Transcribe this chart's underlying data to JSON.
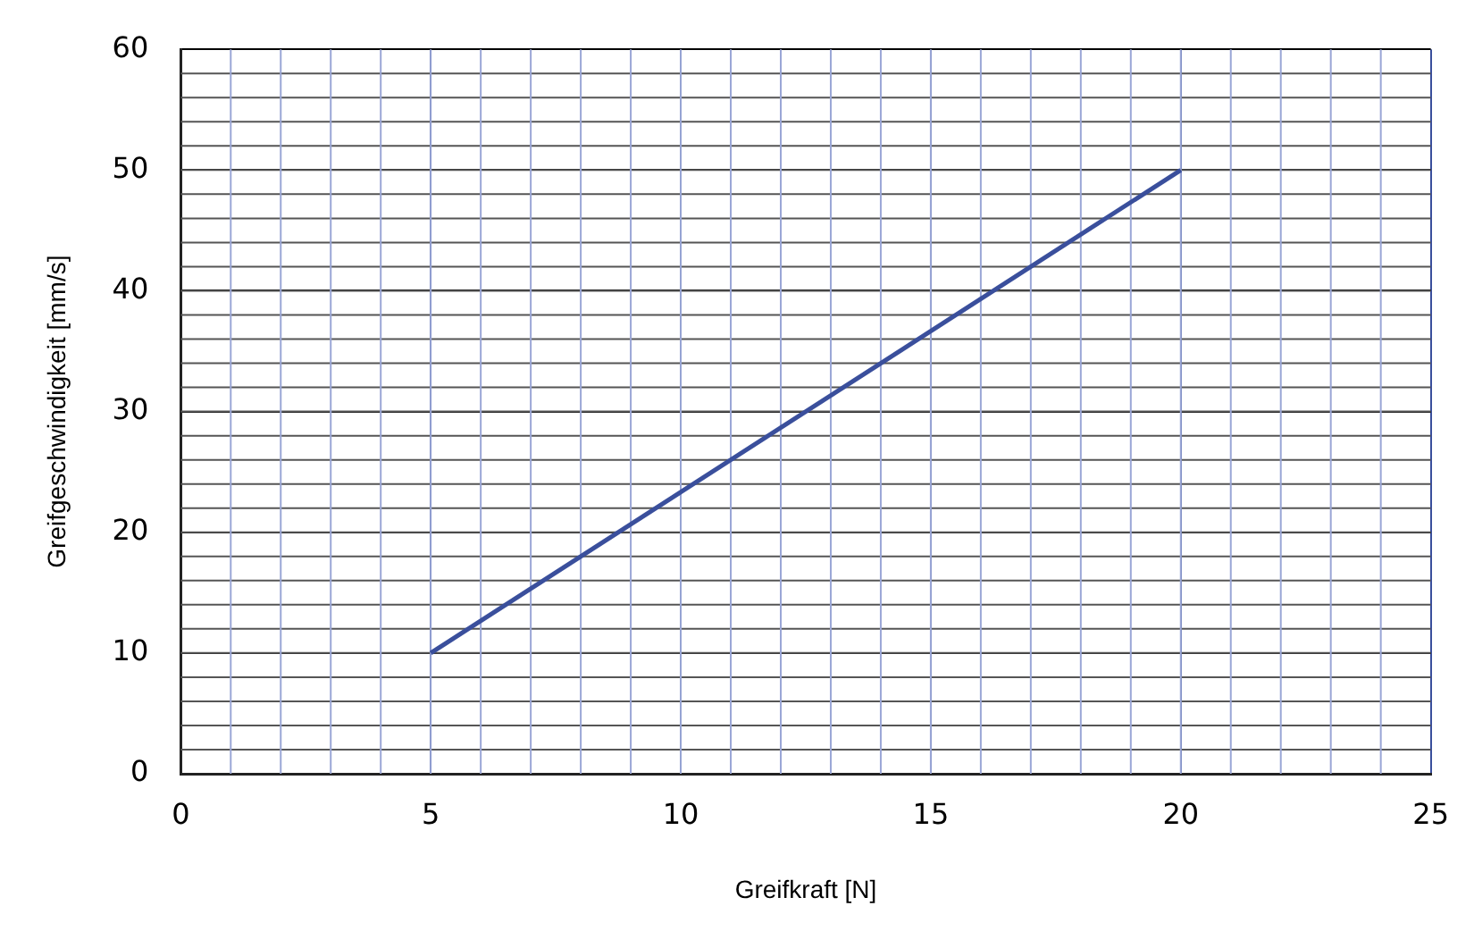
{
  "chart_data": {
    "type": "line",
    "xlabel": "Greifkraft [N]",
    "ylabel": "Greifgeschwindigkeit [mm/s]",
    "x": [
      5,
      20
    ],
    "series": [
      {
        "color": "#3a4f9c",
        "values": [
          10,
          50
        ]
      }
    ],
    "xlim": [
      0,
      25
    ],
    "xticks": [
      0,
      5,
      10,
      15,
      20,
      25
    ],
    "ylim": [
      0,
      60
    ],
    "yticks": [
      0,
      10,
      20,
      30,
      40,
      50,
      60
    ],
    "grid": true,
    "marker": "none",
    "line_style": "solid",
    "legend": false
  }
}
